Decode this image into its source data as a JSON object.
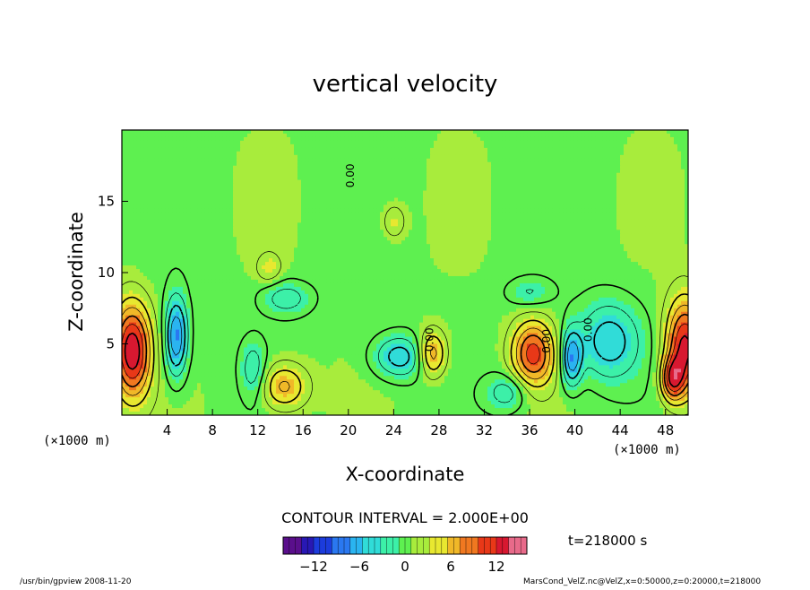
{
  "chart_data": {
    "type": "heatmap",
    "title": "vertical velocity",
    "xlabel": "X-coordinate",
    "ylabel": "Z-coordinate",
    "x_unit_label": "(×1000 m)",
    "y_unit_label": "(×1000 m)",
    "xlim": [
      0,
      50
    ],
    "ylim": [
      0,
      20
    ],
    "x_ticks": [
      4,
      8,
      12,
      16,
      20,
      24,
      28,
      32,
      36,
      40,
      44,
      48
    ],
    "y_ticks": [
      5,
      10,
      15
    ],
    "contour_interval_text": "CONTOUR INTERVAL = 2.000E+00",
    "contour_labels": [
      "0.00",
      "0.00",
      "0.00",
      "0.00"
    ],
    "time_label": "t=218000 s",
    "colorbar": {
      "range": [
        -16,
        16
      ],
      "ticks": [
        -12,
        -6,
        0,
        6,
        12
      ],
      "colors": [
        "#5a0f8c",
        "#2818b4",
        "#1c3cdc",
        "#2a78f0",
        "#2ab4f0",
        "#30dcd8",
        "#3cf0a8",
        "#5ef050",
        "#a8ec3c",
        "#e8e830",
        "#f0b828",
        "#f07820",
        "#e83818",
        "#d81830",
        "#e86a8a"
      ]
    },
    "features": [
      {
        "type": "updraft",
        "x": 0.9,
        "z": 4.5,
        "peak": 13,
        "rx": 1.6,
        "rz": 3.2
      },
      {
        "type": "updraft",
        "x": 49.7,
        "z": 4.8,
        "peak": 12,
        "rx": 1.6,
        "rz": 3.2
      },
      {
        "type": "updraft",
        "x": 48.6,
        "z": 2.5,
        "peak": 9,
        "rx": 1.0,
        "rz": 1.5
      },
      {
        "type": "updraft",
        "x": 36.3,
        "z": 4.3,
        "peak": 10,
        "rx": 1.8,
        "rz": 2.2
      },
      {
        "type": "updraft",
        "x": 27.4,
        "z": 4.3,
        "peak": 7,
        "rx": 1.2,
        "rz": 1.6
      },
      {
        "type": "updraft",
        "x": 14.3,
        "z": 2.0,
        "peak": 6,
        "rx": 2.0,
        "rz": 1.6
      },
      {
        "type": "updraft",
        "x": 24.0,
        "z": 13.6,
        "peak": 3,
        "rx": 1.0,
        "rz": 1.2
      },
      {
        "type": "updraft",
        "x": 13.0,
        "z": 10.3,
        "peak": 3,
        "rx": 1.0,
        "rz": 1.0
      },
      {
        "type": "downdraft",
        "x": 4.8,
        "z": 5.5,
        "peak": -9,
        "rx": 1.0,
        "rz": 2.8
      },
      {
        "type": "downdraft",
        "x": 39.7,
        "z": 4.0,
        "peak": -8,
        "rx": 0.9,
        "rz": 2.0
      },
      {
        "type": "downdraft",
        "x": 43.0,
        "z": 5.2,
        "peak": -6,
        "rx": 2.8,
        "rz": 2.8
      },
      {
        "type": "downdraft",
        "x": 24.5,
        "z": 4.1,
        "peak": -6,
        "rx": 2.3,
        "rz": 1.5
      },
      {
        "type": "downdraft",
        "x": 11.6,
        "z": 3.2,
        "peak": -4,
        "rx": 1.1,
        "rz": 2.0
      },
      {
        "type": "downdraft",
        "x": 34.0,
        "z": 1.6,
        "peak": -4,
        "rx": 1.8,
        "rz": 1.3
      },
      {
        "type": "downdraft",
        "x": 14.5,
        "z": 8.2,
        "peak": -4,
        "rx": 2.2,
        "rz": 1.2
      },
      {
        "type": "downdraft",
        "x": 36.0,
        "z": 8.6,
        "peak": -3,
        "rx": 2.0,
        "rz": 1.0
      }
    ]
  },
  "footer": {
    "left": "/usr/bin/gpview   2008-11-20",
    "right": "MarsCond_VelZ.nc@VelZ,x=0:50000,z=0:20000,t=218000"
  }
}
